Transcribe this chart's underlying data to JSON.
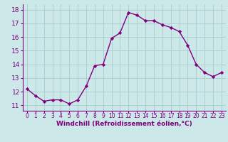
{
  "x": [
    0,
    1,
    2,
    3,
    4,
    5,
    6,
    7,
    8,
    9,
    10,
    11,
    12,
    13,
    14,
    15,
    16,
    17,
    18,
    19,
    20,
    21,
    22,
    23
  ],
  "y": [
    12.2,
    11.7,
    11.3,
    11.4,
    11.4,
    11.1,
    11.4,
    12.4,
    13.9,
    14.0,
    15.9,
    16.3,
    17.8,
    17.6,
    17.2,
    17.2,
    16.9,
    16.7,
    16.4,
    15.4,
    14.0,
    13.4,
    13.1,
    13.4
  ],
  "line_color": "#800080",
  "marker": "D",
  "marker_size": 2.2,
  "bg_color": "#cce8e8",
  "grid_color": "#aacccc",
  "xlabel": "Windchill (Refroidissement éolien,°C)",
  "xlabel_color": "#800080",
  "tick_color": "#800080",
  "axis_color": "#800080",
  "xlim": [
    -0.5,
    23.5
  ],
  "ylim": [
    10.6,
    18.4
  ],
  "yticks": [
    11,
    12,
    13,
    14,
    15,
    16,
    17,
    18
  ],
  "xticks": [
    0,
    1,
    2,
    3,
    4,
    5,
    6,
    7,
    8,
    9,
    10,
    11,
    12,
    13,
    14,
    15,
    16,
    17,
    18,
    19,
    20,
    21,
    22,
    23
  ],
  "line_width": 1.0,
  "xlabel_fontsize": 6.5,
  "ytick_fontsize": 6.5,
  "xtick_fontsize": 5.5
}
